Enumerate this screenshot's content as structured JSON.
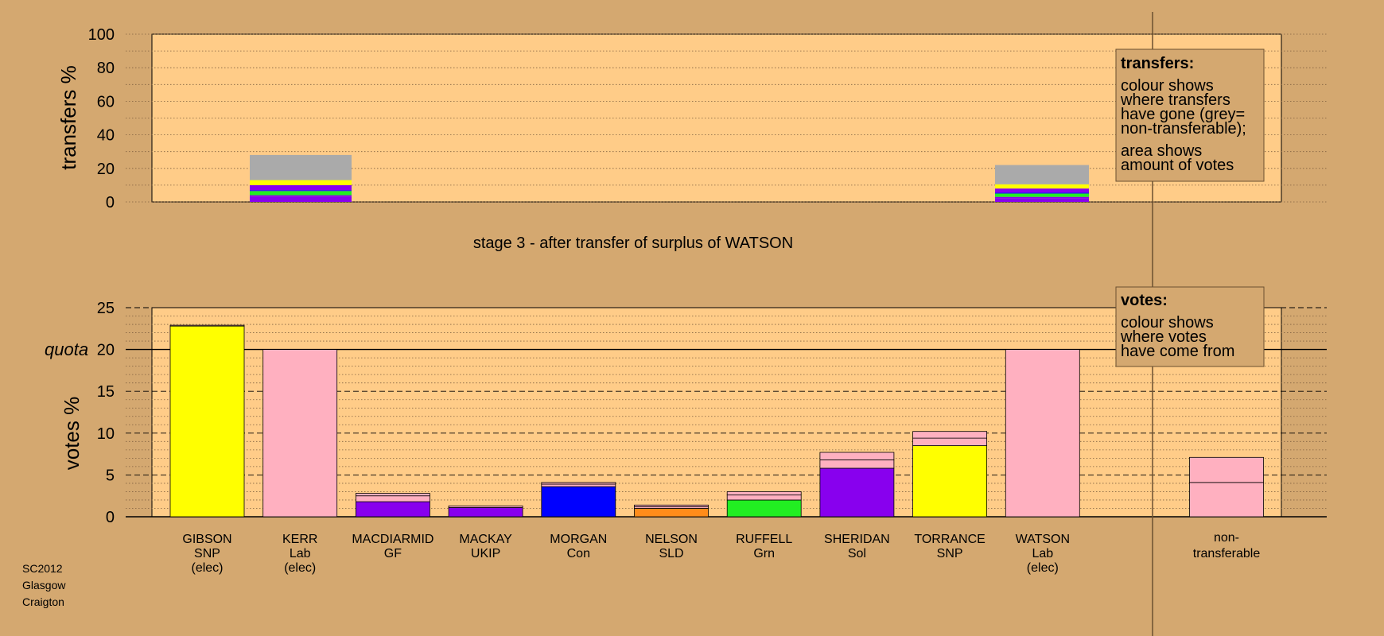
{
  "chart_data": [
    {
      "type": "bar",
      "stacked": true,
      "ylabel": "transfers %",
      "ylim": [
        0,
        100
      ],
      "yticks": [
        0,
        20,
        40,
        60,
        80,
        100
      ],
      "grid": "dotted",
      "bars": [
        {
          "category": "KERR",
          "segments": [
            {
              "party": "Sol",
              "value": 3
            },
            {
              "party": "GF",
              "value": 1
            },
            {
              "party": "Grn",
              "value": 2.5
            },
            {
              "party": "Con",
              "value": 0.5
            },
            {
              "party": "Sol2",
              "value": 3
            },
            {
              "party": "SNP",
              "value": 3
            },
            {
              "party": "non-transferable",
              "value": 15
            }
          ]
        },
        {
          "category": "WATSON",
          "segments": [
            {
              "party": "Sol",
              "value": 2
            },
            {
              "party": "GF",
              "value": 1
            },
            {
              "party": "Grn",
              "value": 2
            },
            {
              "party": "Con",
              "value": 0.5
            },
            {
              "party": "Sol2",
              "value": 2.5
            },
            {
              "party": "SNP",
              "value": 2.5
            },
            {
              "party": "non-transferable",
              "value": 11.5
            }
          ]
        }
      ],
      "legend": {
        "heading": "transfers:",
        "lines1": [
          "colour shows",
          "where transfers",
          "have gone (grey=",
          "non-transferable);"
        ],
        "lines2": [
          "area shows",
          "amount of votes"
        ]
      }
    },
    {
      "type": "bar",
      "stacked": true,
      "title": "stage 3 - after transfer of surplus of WATSON",
      "ylabel": "votes %",
      "ylim": [
        0,
        25
      ],
      "yticks": [
        0,
        5,
        10,
        15,
        20,
        25
      ],
      "quota": {
        "label": "quota",
        "value": 20
      },
      "grid": "dashed",
      "candidates": [
        {
          "name": "GIBSON",
          "party": "SNP",
          "status": "(elec)",
          "segments": [
            {
              "color": "#ffff00",
              "value": 22.8
            },
            {
              "color": "#ffb0c0",
              "value": 0.1
            }
          ]
        },
        {
          "name": "KERR",
          "party": "Lab",
          "status": "(elec)",
          "segments": [
            {
              "color": "#ffb0c0",
              "value": 20
            }
          ]
        },
        {
          "name": "MACDIARMID",
          "party": "GF",
          "status": "",
          "segments": [
            {
              "color": "#8800ee",
              "value": 1.8
            },
            {
              "color": "#ffb0c0",
              "value": 0.7
            },
            {
              "color": "#ffb0c0",
              "value": 0.3
            }
          ]
        },
        {
          "name": "MACKAY",
          "party": "UKIP",
          "status": "",
          "segments": [
            {
              "color": "#8800ee",
              "value": 1.1
            },
            {
              "color": "#ffb0c0",
              "value": 0.2
            }
          ]
        },
        {
          "name": "MORGAN",
          "party": "Con",
          "status": "",
          "segments": [
            {
              "color": "#0000ff",
              "value": 3.6
            },
            {
              "color": "#ffb0c0",
              "value": 0.3
            },
            {
              "color": "#ffb0c0",
              "value": 0.2
            }
          ]
        },
        {
          "name": "NELSON",
          "party": "SLD",
          "status": "",
          "segments": [
            {
              "color": "#ff8c1a",
              "value": 1.0
            },
            {
              "color": "#ffb0c0",
              "value": 0.2
            },
            {
              "color": "#ffb0c0",
              "value": 0.2
            }
          ]
        },
        {
          "name": "RUFFELL",
          "party": "Grn",
          "status": "",
          "segments": [
            {
              "color": "#22ee22",
              "value": 2.0
            },
            {
              "color": "#ffb0c0",
              "value": 0.6
            },
            {
              "color": "#ffb0c0",
              "value": 0.4
            }
          ]
        },
        {
          "name": "SHERIDAN",
          "party": "Sol",
          "status": "",
          "segments": [
            {
              "color": "#8800ee",
              "value": 5.8
            },
            {
              "color": "#ffb0c0",
              "value": 1.0
            },
            {
              "color": "#ffb0c0",
              "value": 0.9
            }
          ]
        },
        {
          "name": "TORRANCE",
          "party": "SNP",
          "status": "",
          "segments": [
            {
              "color": "#ffff00",
              "value": 8.5
            },
            {
              "color": "#ffb0c0",
              "value": 0.9
            },
            {
              "color": "#ffb0c0",
              "value": 0.8
            }
          ]
        },
        {
          "name": "WATSON",
          "party": "Lab",
          "status": "(elec)",
          "segments": [
            {
              "color": "#ffb0c0",
              "value": 20
            }
          ]
        }
      ],
      "nontransferable": {
        "label_line1": "non-",
        "label_line2": "transferable",
        "segments": [
          {
            "color": "#ffb0c0",
            "value": 4.1
          },
          {
            "color": "#ffb0c0",
            "value": 3.0
          }
        ]
      },
      "legend": {
        "heading": "votes:",
        "lines": [
          "colour shows",
          "where votes",
          "have come from"
        ]
      }
    }
  ],
  "colors": {
    "background": "#d4a870",
    "plot_area": "#ffcc88",
    "nontransferable": "#aaaaaa",
    "snp": "#ffff00",
    "lab": "#ffb0c0",
    "sol": "#8800ee",
    "con": "#0000ff",
    "sld": "#ff8c1a",
    "grn": "#22ee22"
  },
  "footer": [
    "SC2012",
    "Glasgow",
    "Craigton"
  ]
}
